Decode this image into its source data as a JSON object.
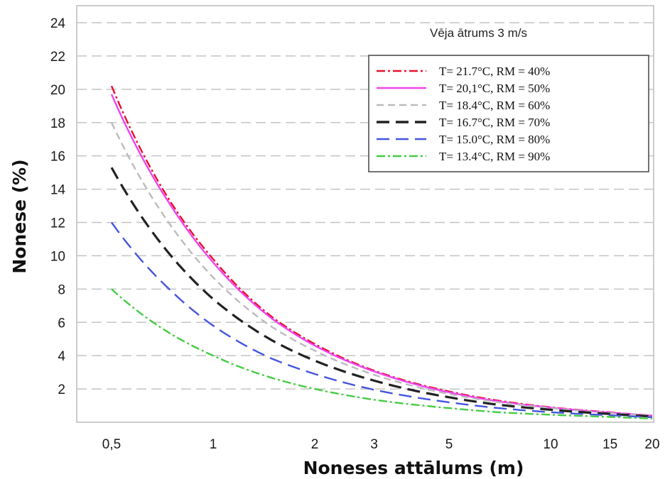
{
  "chart_data": {
    "type": "line",
    "title": "",
    "annotation": "Vēja ātrums 3 m/s",
    "xlabel": "Noneses attālums (m)",
    "ylabel": "Nonese (%)",
    "x_scale": "log",
    "xlim": [
      0.5,
      20
    ],
    "ylim": [
      0,
      25
    ],
    "x_ticks": [
      {
        "value": 0.5,
        "label": "0,5"
      },
      {
        "value": 1,
        "label": "1"
      },
      {
        "value": 2,
        "label": "2"
      },
      {
        "value": 3,
        "label": "3"
      },
      {
        "value": 5,
        "label": "5"
      },
      {
        "value": 10,
        "label": "10"
      },
      {
        "value": 15,
        "label": "15"
      },
      {
        "value": 20,
        "label": "20"
      }
    ],
    "y_ticks": [
      {
        "value": 2,
        "label": "2"
      },
      {
        "value": 4,
        "label": "4"
      },
      {
        "value": 6,
        "label": "6"
      },
      {
        "value": 8,
        "label": "8"
      },
      {
        "value": 10,
        "label": "10"
      },
      {
        "value": 12,
        "label": "12"
      },
      {
        "value": 14,
        "label": "14"
      },
      {
        "value": 16,
        "label": "16"
      },
      {
        "value": 18,
        "label": "18"
      },
      {
        "value": 20,
        "label": "20"
      },
      {
        "value": 22,
        "label": "22"
      },
      {
        "value": 24,
        "label": "24"
      }
    ],
    "grid": "horizontal dashed",
    "legend_position": "top-right",
    "series": [
      {
        "name": "T= 21.7°C, RM = 40%",
        "color": "#e8102e",
        "style": "dash-dot",
        "x": [
          0.5,
          0.75,
          1,
          1.5,
          2,
          3,
          5,
          7,
          10,
          15,
          20
        ],
        "y": [
          20.2,
          13.2,
          9.8,
          6.3,
          4.7,
          3.1,
          1.85,
          1.3,
          0.9,
          0.6,
          0.4
        ]
      },
      {
        "name": "T= 20,1°C, RM = 50%",
        "color": "#ee44ee",
        "style": "solid",
        "x": [
          0.5,
          0.75,
          1,
          1.5,
          2,
          3,
          5,
          7,
          10,
          15,
          20
        ],
        "y": [
          19.7,
          13.0,
          9.6,
          6.2,
          4.6,
          3.05,
          1.8,
          1.25,
          0.88,
          0.58,
          0.4
        ]
      },
      {
        "name": "T= 18.4°C, RM = 60%",
        "color": "#bbbbbb",
        "style": "dashed",
        "x": [
          0.5,
          0.75,
          1,
          1.5,
          2,
          3,
          5,
          7,
          10,
          15,
          20
        ],
        "y": [
          18.0,
          11.8,
          8.7,
          5.7,
          4.3,
          2.85,
          1.7,
          1.2,
          0.85,
          0.55,
          0.38
        ]
      },
      {
        "name": "T= 16.7°C, RM = 70%",
        "color": "#222222",
        "style": "long-dash",
        "x": [
          0.5,
          0.75,
          1,
          1.5,
          2,
          3,
          5,
          7,
          10,
          15,
          20
        ],
        "y": [
          15.3,
          10.0,
          7.4,
          4.9,
          3.7,
          2.5,
          1.5,
          1.05,
          0.75,
          0.5,
          0.35
        ]
      },
      {
        "name": "T= 15.0°C, RM = 80%",
        "color": "#4455dd",
        "style": "long-dash",
        "x": [
          0.5,
          0.75,
          1,
          1.5,
          2,
          3,
          5,
          7,
          10,
          15,
          20
        ],
        "y": [
          12.0,
          7.9,
          5.8,
          3.8,
          2.9,
          1.95,
          1.2,
          0.85,
          0.6,
          0.42,
          0.3
        ]
      },
      {
        "name": "T= 13.4°C, RM = 90%",
        "color": "#44cc44",
        "style": "dash-dot",
        "x": [
          0.5,
          0.75,
          1,
          1.5,
          2,
          3,
          5,
          7,
          10,
          15,
          20
        ],
        "y": [
          8.0,
          5.3,
          4.0,
          2.65,
          2.0,
          1.35,
          0.85,
          0.6,
          0.45,
          0.32,
          0.22
        ]
      }
    ]
  }
}
